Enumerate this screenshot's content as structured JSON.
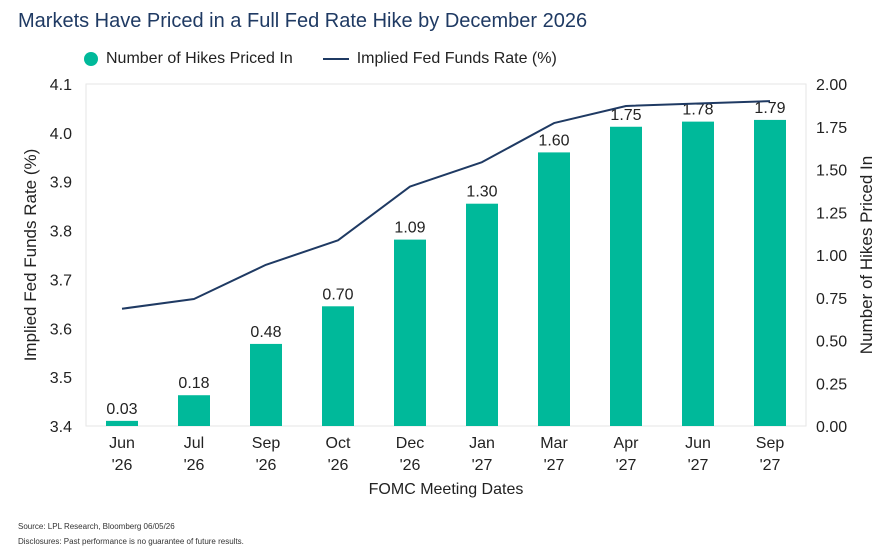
{
  "title": "Markets Have Priced in a Full Fed Rate Hike by December 2026",
  "legend": {
    "bars_label": "Number of Hikes Priced In",
    "line_label": "Implied Fed Funds Rate (%)"
  },
  "colors": {
    "bar": "#00b99a",
    "line": "#1f3a63",
    "grid": "#dcdcdc"
  },
  "footer": {
    "source": "Source: LPL Research, Bloomberg 06/05/26",
    "disclosure": "Disclosures: Past performance is no guarantee of future results."
  },
  "chart_data": {
    "type": "bar",
    "categories": [
      [
        "Jun",
        "'26"
      ],
      [
        "Jul",
        "'26"
      ],
      [
        "Sep",
        "'26"
      ],
      [
        "Oct",
        "'26"
      ],
      [
        "Dec",
        "'26"
      ],
      [
        "Jan",
        "'27"
      ],
      [
        "Mar",
        "'27"
      ],
      [
        "Apr",
        "'27"
      ],
      [
        "Jun",
        "'27"
      ],
      [
        "Sep",
        "'27"
      ]
    ],
    "series": [
      {
        "name": "Number of Hikes Priced In",
        "type": "bar",
        "axis": "right",
        "values": [
          0.03,
          0.18,
          0.48,
          0.7,
          1.09,
          1.3,
          1.6,
          1.75,
          1.78,
          1.79
        ],
        "labels": [
          "0.03",
          "0.18",
          "0.48",
          "0.70",
          "1.09",
          "1.30",
          "1.60",
          "1.75",
          "1.78",
          "1.79"
        ]
      },
      {
        "name": "Implied Fed Funds Rate (%)",
        "type": "line",
        "axis": "left",
        "values": [
          3.64,
          3.66,
          3.73,
          3.78,
          3.89,
          3.94,
          4.02,
          4.055,
          4.06,
          4.065
        ]
      }
    ],
    "xlabel": "FOMC Meeting Dates",
    "ylabel_left": "Implied Fed Funds Rate (%)",
    "ylabel_right": "Number of Hikes Priced In",
    "ylim_left": [
      3.4,
      4.1
    ],
    "ylim_right": [
      0,
      2
    ],
    "yticks_left": [
      "3.4",
      "3.5",
      "3.6",
      "3.7",
      "3.8",
      "3.9",
      "4.0",
      "4.1"
    ],
    "yticks_right": [
      "0.00",
      "0.25",
      "0.50",
      "0.75",
      "1.00",
      "1.25",
      "1.50",
      "1.75",
      "2.00"
    ],
    "grid": false,
    "legend_position": "top-left"
  }
}
